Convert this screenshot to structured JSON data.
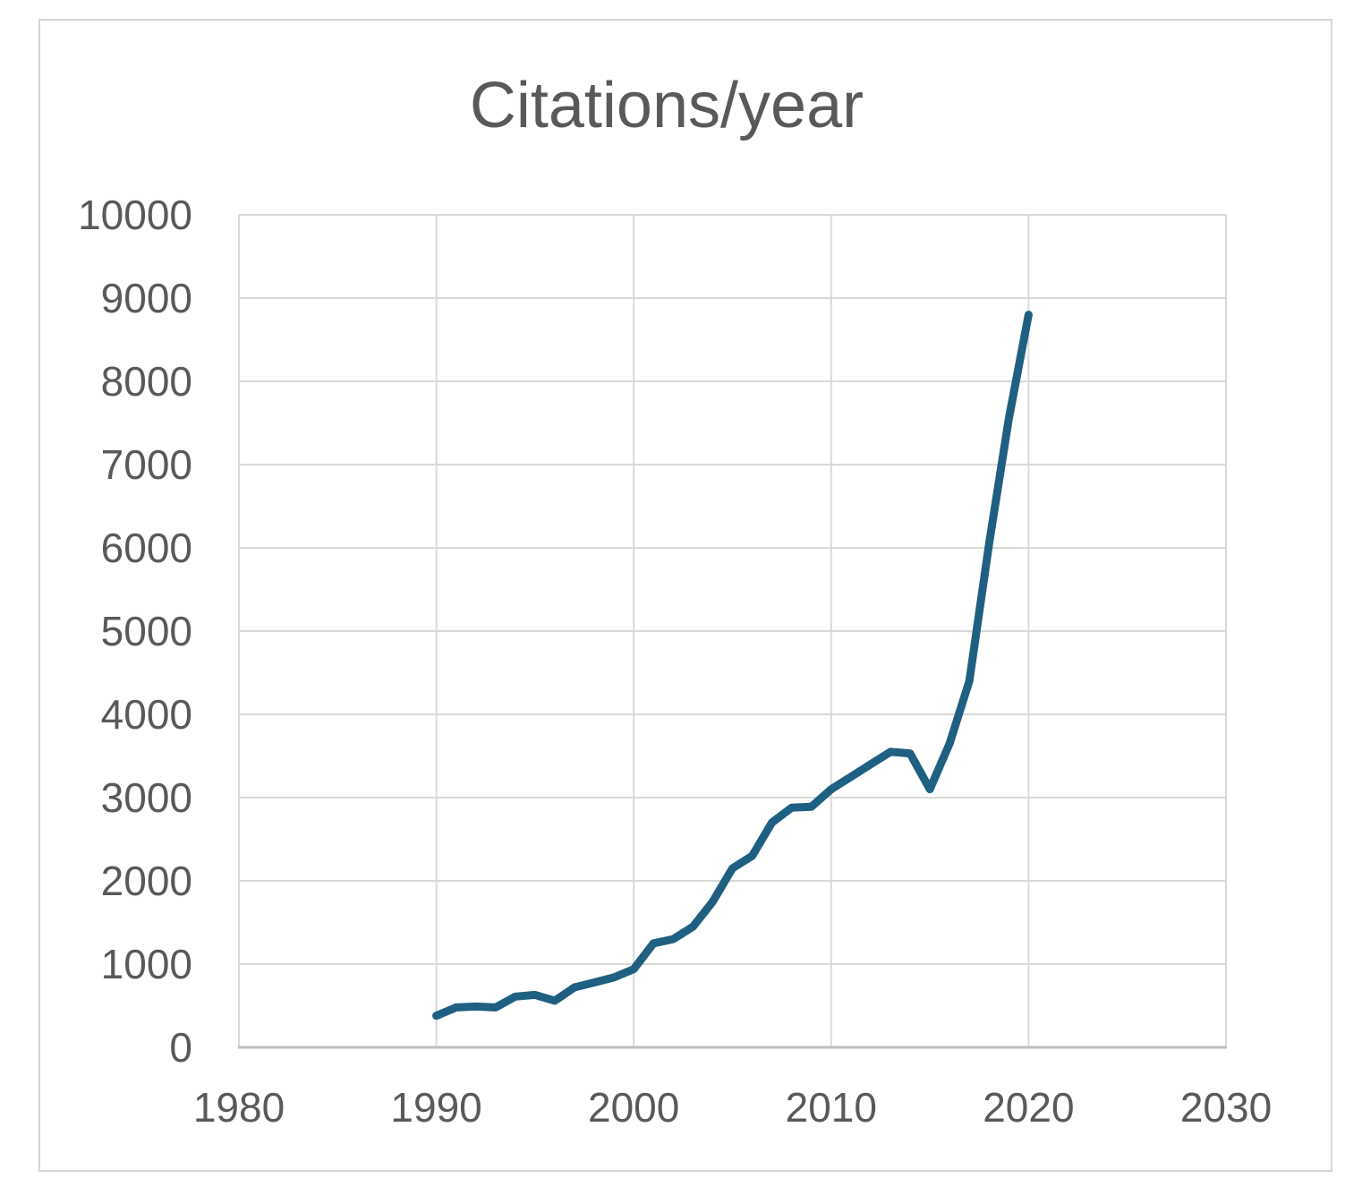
{
  "chart_data": {
    "type": "line",
    "title": "Citations/year",
    "xlabel": "",
    "ylabel": "",
    "x": [
      1990,
      1991,
      1992,
      1993,
      1994,
      1995,
      1996,
      1997,
      1998,
      1999,
      2000,
      2001,
      2002,
      2003,
      2004,
      2005,
      2006,
      2007,
      2008,
      2009,
      2010,
      2011,
      2012,
      2013,
      2014,
      2015,
      2016,
      2017,
      2018,
      2019,
      2020
    ],
    "values": [
      380,
      480,
      490,
      480,
      610,
      630,
      560,
      720,
      780,
      840,
      940,
      1250,
      1300,
      1450,
      1750,
      2150,
      2300,
      2700,
      2880,
      2890,
      3100,
      3250,
      3400,
      3550,
      3530,
      3100,
      3650,
      4400,
      6050,
      7550,
      8800
    ],
    "xlim": [
      1980,
      2030
    ],
    "ylim": [
      0,
      10000
    ],
    "x_ticks": [
      1980,
      1990,
      2000,
      2010,
      2020,
      2030
    ],
    "y_ticks": [
      0,
      1000,
      2000,
      3000,
      4000,
      5000,
      6000,
      7000,
      8000,
      9000,
      10000
    ],
    "grid": true,
    "legend": "none",
    "line_color": "#1f6082"
  },
  "colors": {
    "grid": "#d9d9d9",
    "axis_line": "#bfbfbf",
    "tick_label": "#595959",
    "title": "#595959",
    "frame_border": "#d4d4d4",
    "background": "#ffffff"
  }
}
